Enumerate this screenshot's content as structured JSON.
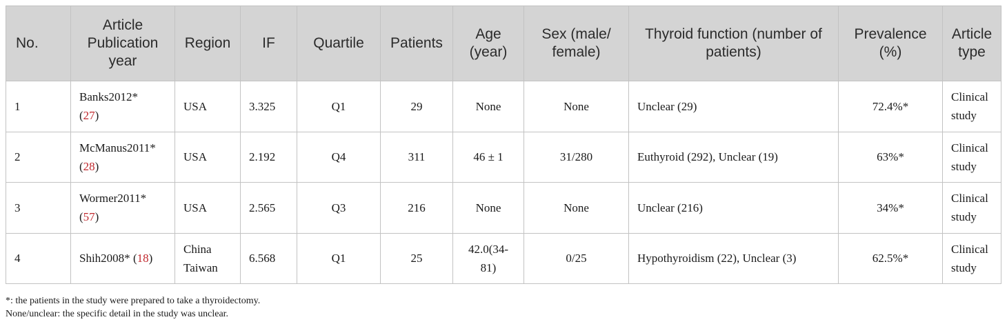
{
  "table": {
    "headers": {
      "no": "No.",
      "article": "Article Publication year",
      "region": "Region",
      "if": "IF",
      "quartile": "Quartile",
      "patients": "Patients",
      "age": "Age (year)",
      "sex": "Sex (male/ female)",
      "thyroid": "Thyroid function (number of patients)",
      "prevalence": "Prevalence (%)",
      "type": "Article type"
    },
    "rows": [
      {
        "no": "1",
        "article": "Banks2012*",
        "ref": "27",
        "region": "USA",
        "if": "3.325",
        "quartile": "Q1",
        "patients": "29",
        "age": "None",
        "sex": "None",
        "thyroid": "Unclear (29)",
        "prevalence": "72.4%*",
        "type": "Clinical study"
      },
      {
        "no": "2",
        "article": "McManus2011*",
        "ref": "28",
        "region": "USA",
        "if": "2.192",
        "quartile": "Q4",
        "patients": "311",
        "age": "46 ± 1",
        "sex": "31/280",
        "thyroid": "Euthyroid (292), Unclear (19)",
        "prevalence": "63%*",
        "type": "Clinical study"
      },
      {
        "no": "3",
        "article": "Wormer2011*",
        "ref": "57",
        "region": "USA",
        "if": "2.565",
        "quartile": "Q3",
        "patients": "216",
        "age": "None",
        "sex": "None",
        "thyroid": "Unclear (216)",
        "prevalence": "34%*",
        "type": "Clinical study"
      },
      {
        "no": "4",
        "article": "Shih2008*",
        "ref": "18",
        "region": "China Taiwan",
        "if": "6.568",
        "quartile": "Q1",
        "patients": "25",
        "age": "42.0(34-81)",
        "sex": "0/25",
        "thyroid": "Hypothyroidism (22), Unclear (3)",
        "prevalence": "62.5%*",
        "type": "Clinical study"
      }
    ]
  },
  "footnotes": [
    "*: the patients in the study were prepared to take a thyroidectomy.",
    "None/unclear: the specific detail in the study was unclear."
  ]
}
